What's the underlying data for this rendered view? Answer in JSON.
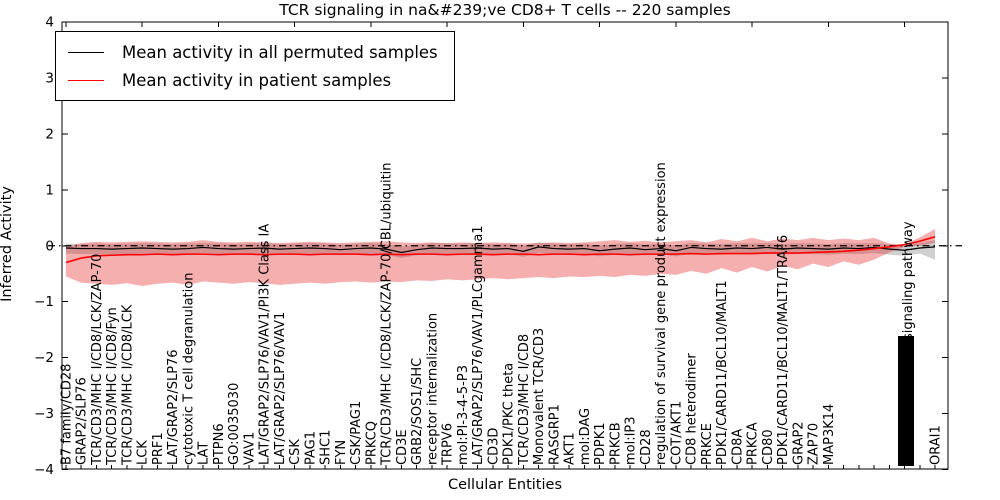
{
  "chart_data": {
    "type": "line",
    "title": "TCR signaling in na&#239;ve CD8+ T cells -- 220 samples",
    "xlabel": "Cellular Entities",
    "ylabel": "Inferred Activity",
    "ylim": [
      -4,
      4
    ],
    "yticks": [
      "4",
      "3",
      "2",
      "1",
      "0",
      "−1",
      "−2",
      "−3",
      "−4"
    ],
    "zero_line": {
      "y": 0,
      "style": "dash-dot",
      "color": "#000000"
    },
    "grid": false,
    "legend_position": "upper-left",
    "categories": [
      "B7 family/CD28",
      "GRAP2/SLP76",
      "TCR/CD3/MHC I/CD8/LCK/ZAP-70",
      "TCR/CD3/MHC I/CD8/Fyn",
      "TCR/CD3/MHC I/CD8/LCK",
      "LCK",
      "PRF1",
      "LAT/GRAP2/SLP76",
      "cytotoxic T cell degranulation",
      "LAT",
      "PTPN6",
      "GO:0035030",
      "VAV1",
      "LAT/GRAP2/SLP76/VAV1/PI3K Class IA",
      "LAT/GRAP2/SLP76/VAV1",
      "CSK",
      "PAG1",
      "SHC1",
      "FYN",
      "CSK/PAG1",
      "PRKCQ",
      "TCR/CD3/MHC I/CD8/LCK/ZAP-70/CBL/ubiquitin",
      "CD3E",
      "GRB2/SOS1/SHC",
      "receptor internalization",
      "TRPV6",
      "mol:PI-3-4-5-P3",
      "LAT/GRAP2/SLP76/VAV1/PLCgamma1",
      "CD3D",
      "PDK1/PKC theta",
      "TCR/CD3/MHC I/CD8",
      "Monovalent TCR/CD3",
      "RASGRP1",
      "AKT1",
      "mol:DAG",
      "PDPK1",
      "PRKCB",
      "mol:IP3",
      "CD28",
      "regulation of survival gene product expression",
      "COT/AKT1",
      "CD8 heterodimer",
      "PRKCE",
      "PDK1/CARD11/BCL10/MALT1",
      "CD8A",
      "PRKCA",
      "CD80",
      "PDK1/CARD11/BCL10/MALT1/TRAF6",
      "GRAP2",
      "ZAP70",
      "MAP3K14"
    ],
    "overlap_cluster": {
      "visible_fragment": "signaling pathway",
      "illegible_positions": 6
    },
    "last_category": "ORAI1",
    "series": [
      {
        "name": "Mean activity in all permuted samples",
        "color": "#000000",
        "values": [
          -0.04,
          -0.05,
          -0.05,
          -0.06,
          -0.05,
          -0.04,
          -0.05,
          -0.06,
          -0.05,
          -0.03,
          -0.05,
          -0.06,
          -0.05,
          -0.04,
          -0.06,
          -0.05,
          -0.04,
          -0.05,
          -0.07,
          -0.05,
          -0.04,
          -0.06,
          -0.12,
          -0.07,
          -0.04,
          -0.05,
          -0.05,
          -0.04,
          -0.06,
          -0.05,
          -0.1,
          -0.02,
          -0.05,
          -0.06,
          -0.05,
          -0.09,
          -0.06,
          -0.04,
          -0.07,
          -0.05,
          -0.09,
          -0.03,
          -0.05,
          -0.06,
          -0.04,
          -0.05,
          -0.03,
          -0.06,
          -0.04,
          -0.05,
          -0.06,
          -0.04,
          -0.05,
          -0.03,
          -0.06,
          -0.08,
          -0.04,
          -0.02
        ]
      },
      {
        "name": "Mean activity in patient samples",
        "color": "#ff0000",
        "values": [
          -0.3,
          -0.22,
          -0.18,
          -0.17,
          -0.16,
          -0.16,
          -0.15,
          -0.16,
          -0.15,
          -0.15,
          -0.16,
          -0.15,
          -0.15,
          -0.16,
          -0.15,
          -0.15,
          -0.16,
          -0.15,
          -0.15,
          -0.15,
          -0.16,
          -0.15,
          -0.16,
          -0.15,
          -0.15,
          -0.16,
          -0.15,
          -0.15,
          -0.16,
          -0.15,
          -0.15,
          -0.16,
          -0.15,
          -0.15,
          -0.16,
          -0.15,
          -0.15,
          -0.16,
          -0.15,
          -0.15,
          -0.15,
          -0.14,
          -0.15,
          -0.14,
          -0.14,
          -0.14,
          -0.13,
          -0.13,
          -0.13,
          -0.12,
          -0.11,
          -0.1,
          -0.08,
          -0.05,
          -0.02,
          0.02,
          0.08,
          0.16
        ]
      }
    ],
    "bands": [
      {
        "name": "permuted samples range",
        "color": "rgba(120,120,120,0.35)",
        "upper": [
          0.04,
          0.03,
          0.04,
          0.03,
          0.04,
          0.05,
          0.04,
          0.03,
          0.04,
          0.05,
          0.04,
          0.03,
          0.04,
          0.05,
          0.03,
          0.04,
          0.05,
          0.04,
          0.02,
          0.04,
          0.05,
          0.03,
          -0.02,
          0.02,
          0.05,
          0.04,
          0.04,
          0.05,
          0.03,
          0.04,
          0.0,
          0.06,
          0.04,
          0.03,
          0.04,
          0.0,
          0.03,
          0.05,
          0.02,
          0.04,
          0.0,
          0.05,
          0.04,
          0.03,
          0.05,
          0.04,
          0.05,
          0.03,
          0.05,
          0.04,
          0.03,
          0.05,
          0.04,
          0.05,
          0.03,
          0.01,
          0.05,
          0.1
        ],
        "lower": [
          -0.14,
          -0.15,
          -0.15,
          -0.16,
          -0.15,
          -0.14,
          -0.15,
          -0.16,
          -0.15,
          -0.13,
          -0.15,
          -0.16,
          -0.15,
          -0.14,
          -0.16,
          -0.15,
          -0.14,
          -0.15,
          -0.17,
          -0.15,
          -0.14,
          -0.16,
          -0.22,
          -0.17,
          -0.14,
          -0.15,
          -0.15,
          -0.14,
          -0.16,
          -0.15,
          -0.2,
          -0.12,
          -0.15,
          -0.16,
          -0.15,
          -0.19,
          -0.16,
          -0.14,
          -0.17,
          -0.15,
          -0.19,
          -0.13,
          -0.15,
          -0.16,
          -0.14,
          -0.15,
          -0.13,
          -0.16,
          -0.14,
          -0.15,
          -0.16,
          -0.14,
          -0.15,
          -0.13,
          -0.16,
          -0.18,
          -0.14,
          -0.25
        ]
      },
      {
        "name": "patient samples range",
        "color": "rgba(230,25,25,0.35)",
        "upper": [
          -0.02,
          0.05,
          0.07,
          0.06,
          0.07,
          0.08,
          0.07,
          0.06,
          0.07,
          0.1,
          0.07,
          0.06,
          0.07,
          0.06,
          0.05,
          0.06,
          0.07,
          0.06,
          0.05,
          0.06,
          0.07,
          0.08,
          0.06,
          0.05,
          0.06,
          0.05,
          0.06,
          0.05,
          0.06,
          0.05,
          0.04,
          0.05,
          0.06,
          0.05,
          0.06,
          0.08,
          0.1,
          0.07,
          0.09,
          0.06,
          0.08,
          0.1,
          0.06,
          0.12,
          0.08,
          0.14,
          0.08,
          0.13,
          0.1,
          0.14,
          0.1,
          0.13,
          0.1,
          0.14,
          0.04,
          0.02,
          0.15,
          0.3
        ],
        "lower": [
          -0.55,
          -0.66,
          -0.68,
          -0.7,
          -0.67,
          -0.72,
          -0.68,
          -0.66,
          -0.7,
          -0.64,
          -0.66,
          -0.68,
          -0.65,
          -0.67,
          -0.7,
          -0.68,
          -0.66,
          -0.68,
          -0.65,
          -0.64,
          -0.66,
          -0.64,
          -0.65,
          -0.62,
          -0.63,
          -0.6,
          -0.62,
          -0.6,
          -0.58,
          -0.6,
          -0.58,
          -0.56,
          -0.58,
          -0.55,
          -0.56,
          -0.54,
          -0.56,
          -0.52,
          -0.54,
          -0.5,
          -0.52,
          -0.45,
          -0.5,
          -0.4,
          -0.48,
          -0.38,
          -0.46,
          -0.36,
          -0.42,
          -0.32,
          -0.38,
          -0.28,
          -0.34,
          -0.25,
          -0.12,
          -0.02,
          0.0,
          0.05
        ]
      }
    ]
  },
  "legend": [
    {
      "label": "Mean activity in all permuted samples",
      "color": "#000000"
    },
    {
      "label": "Mean activity in patient samples",
      "color": "#ff0000"
    }
  ]
}
